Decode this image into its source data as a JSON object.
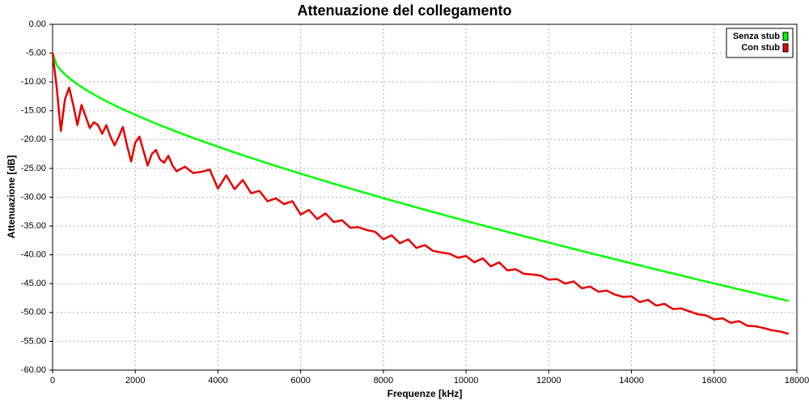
{
  "chart_data": {
    "type": "line",
    "title": "Attenuazione del collegamento",
    "x_label": "Frequenze [kHz]",
    "y_label": "Attenuazione [dB]",
    "x": [
      0,
      100,
      200,
      300,
      400,
      500,
      600,
      700,
      800,
      900,
      1000,
      1100,
      1200,
      1300,
      1400,
      1500,
      1600,
      1700,
      1800,
      1900,
      2000,
      2100,
      2200,
      2300,
      2400,
      2500,
      2600,
      2700,
      2800,
      2900,
      3000,
      3200,
      3400,
      3600,
      3800,
      4000,
      4200,
      4400,
      4600,
      4800,
      5000,
      5200,
      5400,
      5600,
      5800,
      6000,
      6200,
      6400,
      6600,
      6800,
      7000,
      7200,
      7400,
      7600,
      7800,
      8000,
      8200,
      8400,
      8600,
      8800,
      9000,
      9200,
      9400,
      9600,
      9800,
      10000,
      10200,
      10400,
      10600,
      10800,
      11000,
      11200,
      11400,
      11600,
      11800,
      12000,
      12200,
      12400,
      12600,
      12800,
      13000,
      13200,
      13400,
      13600,
      13800,
      14000,
      14200,
      14400,
      14600,
      14800,
      15000,
      15200,
      15400,
      15600,
      15800,
      16000,
      16200,
      16400,
      16600,
      16800,
      17000,
      17200,
      17400,
      17600,
      17800
    ],
    "series": [
      {
        "name": "Senza stub",
        "color": "#00ff00",
        "values": [
          -5,
          -7.07,
          -7.98,
          -8.7,
          -9.32,
          -9.89,
          -10.4,
          -10.88,
          -11.34,
          -11.77,
          -12.18,
          -12.58,
          -12.96,
          -13.34,
          -13.7,
          -14.05,
          -14.4,
          -14.73,
          -15.06,
          -15.39,
          -15.7,
          -16.02,
          -16.32,
          -16.62,
          -16.93,
          -17.22,
          -17.5,
          -17.79,
          -18.07,
          -18.35,
          -18.63,
          -19.17,
          -19.7,
          -20.22,
          -20.73,
          -21.23,
          -21.73,
          -22.22,
          -22.7,
          -23.17,
          -23.65,
          -24.11,
          -24.56,
          -25.02,
          -25.47,
          -25.92,
          -26.35,
          -26.79,
          -27.22,
          -27.65,
          -28.07,
          -28.5,
          -28.92,
          -29.33,
          -29.74,
          -30.15,
          -30.56,
          -30.96,
          -31.37,
          -31.77,
          -32.16,
          -32.55,
          -32.95,
          -33.34,
          -33.72,
          -34.11,
          -34.5,
          -34.87,
          -35.25,
          -35.63,
          -36.01,
          -36.38,
          -36.76,
          -37.13,
          -37.49,
          -37.86,
          -38.23,
          -38.6,
          -38.96,
          -39.33,
          -39.69,
          -40.05,
          -40.4,
          -40.76,
          -41.12,
          -41.47,
          -41.82,
          -42.18,
          -42.53,
          -42.88,
          -43.23,
          -43.58,
          -43.92,
          -44.27,
          -44.62,
          -44.96,
          -45.3,
          -45.64,
          -45.99,
          -46.32,
          -46.66,
          -47.0,
          -47.34,
          -47.67,
          -48.01
        ]
      },
      {
        "name": "Con stub",
        "color": "#e60000",
        "values": [
          -5,
          -11,
          -18.5,
          -13,
          -11,
          -14,
          -17.5,
          -14,
          -16,
          -18,
          -17,
          -17.5,
          -19,
          -17.5,
          -19.5,
          -21,
          -19.5,
          -17.8,
          -21,
          -23.8,
          -20.5,
          -19.5,
          -22,
          -24.5,
          -22.5,
          -21.8,
          -23.5,
          -24,
          -22.8,
          -24.5,
          -25.5,
          -24.7,
          -25.8,
          -25.6,
          -25.2,
          -28.5,
          -26.2,
          -28.6,
          -27.0,
          -29.3,
          -28.9,
          -30.7,
          -30.2,
          -31.2,
          -30.7,
          -33,
          -32.2,
          -33.8,
          -32.8,
          -34.3,
          -34,
          -35.3,
          -35.2,
          -35.7,
          -36,
          -37.3,
          -36.6,
          -38,
          -37.3,
          -38.8,
          -38.3,
          -39.3,
          -39.6,
          -39.8,
          -40.5,
          -40.2,
          -41.3,
          -40.6,
          -42,
          -41.3,
          -42.7,
          -42.5,
          -43.3,
          -43.4,
          -43.6,
          -44.3,
          -44.2,
          -45,
          -44.6,
          -45.8,
          -45.5,
          -46.4,
          -46.2,
          -46.9,
          -47.3,
          -47.2,
          -48.2,
          -47.8,
          -48.8,
          -48.5,
          -49.4,
          -49.3,
          -49.8,
          -50.3,
          -50.5,
          -51.2,
          -51,
          -51.8,
          -51.5,
          -52.3,
          -52.4,
          -52.7,
          -53.1,
          -53.3,
          -53.7
        ]
      }
    ],
    "xlim": [
      0,
      18000
    ],
    "xticks": [
      0,
      2000,
      4000,
      6000,
      8000,
      10000,
      12000,
      14000,
      16000,
      18000
    ],
    "ylim": [
      -60,
      0
    ],
    "yticks": [
      {
        "value": 0,
        "label": "0.00"
      },
      {
        "value": -5,
        "label": "-5.00"
      },
      {
        "value": -10,
        "label": "-10.00"
      },
      {
        "value": -15,
        "label": "-15.00"
      },
      {
        "value": -20,
        "label": "-20.00"
      },
      {
        "value": -25,
        "label": "-25.00"
      },
      {
        "value": -30,
        "label": "-30.00"
      },
      {
        "value": -35,
        "label": "-35.00"
      },
      {
        "value": -40,
        "label": "-40.00"
      },
      {
        "value": -45,
        "label": "-45.00"
      },
      {
        "value": -50,
        "label": "-50.00"
      },
      {
        "value": -55,
        "label": "-55.00"
      },
      {
        "value": -60,
        "label": "-60.00"
      }
    ],
    "grid": true,
    "legend_position": "top-right"
  }
}
